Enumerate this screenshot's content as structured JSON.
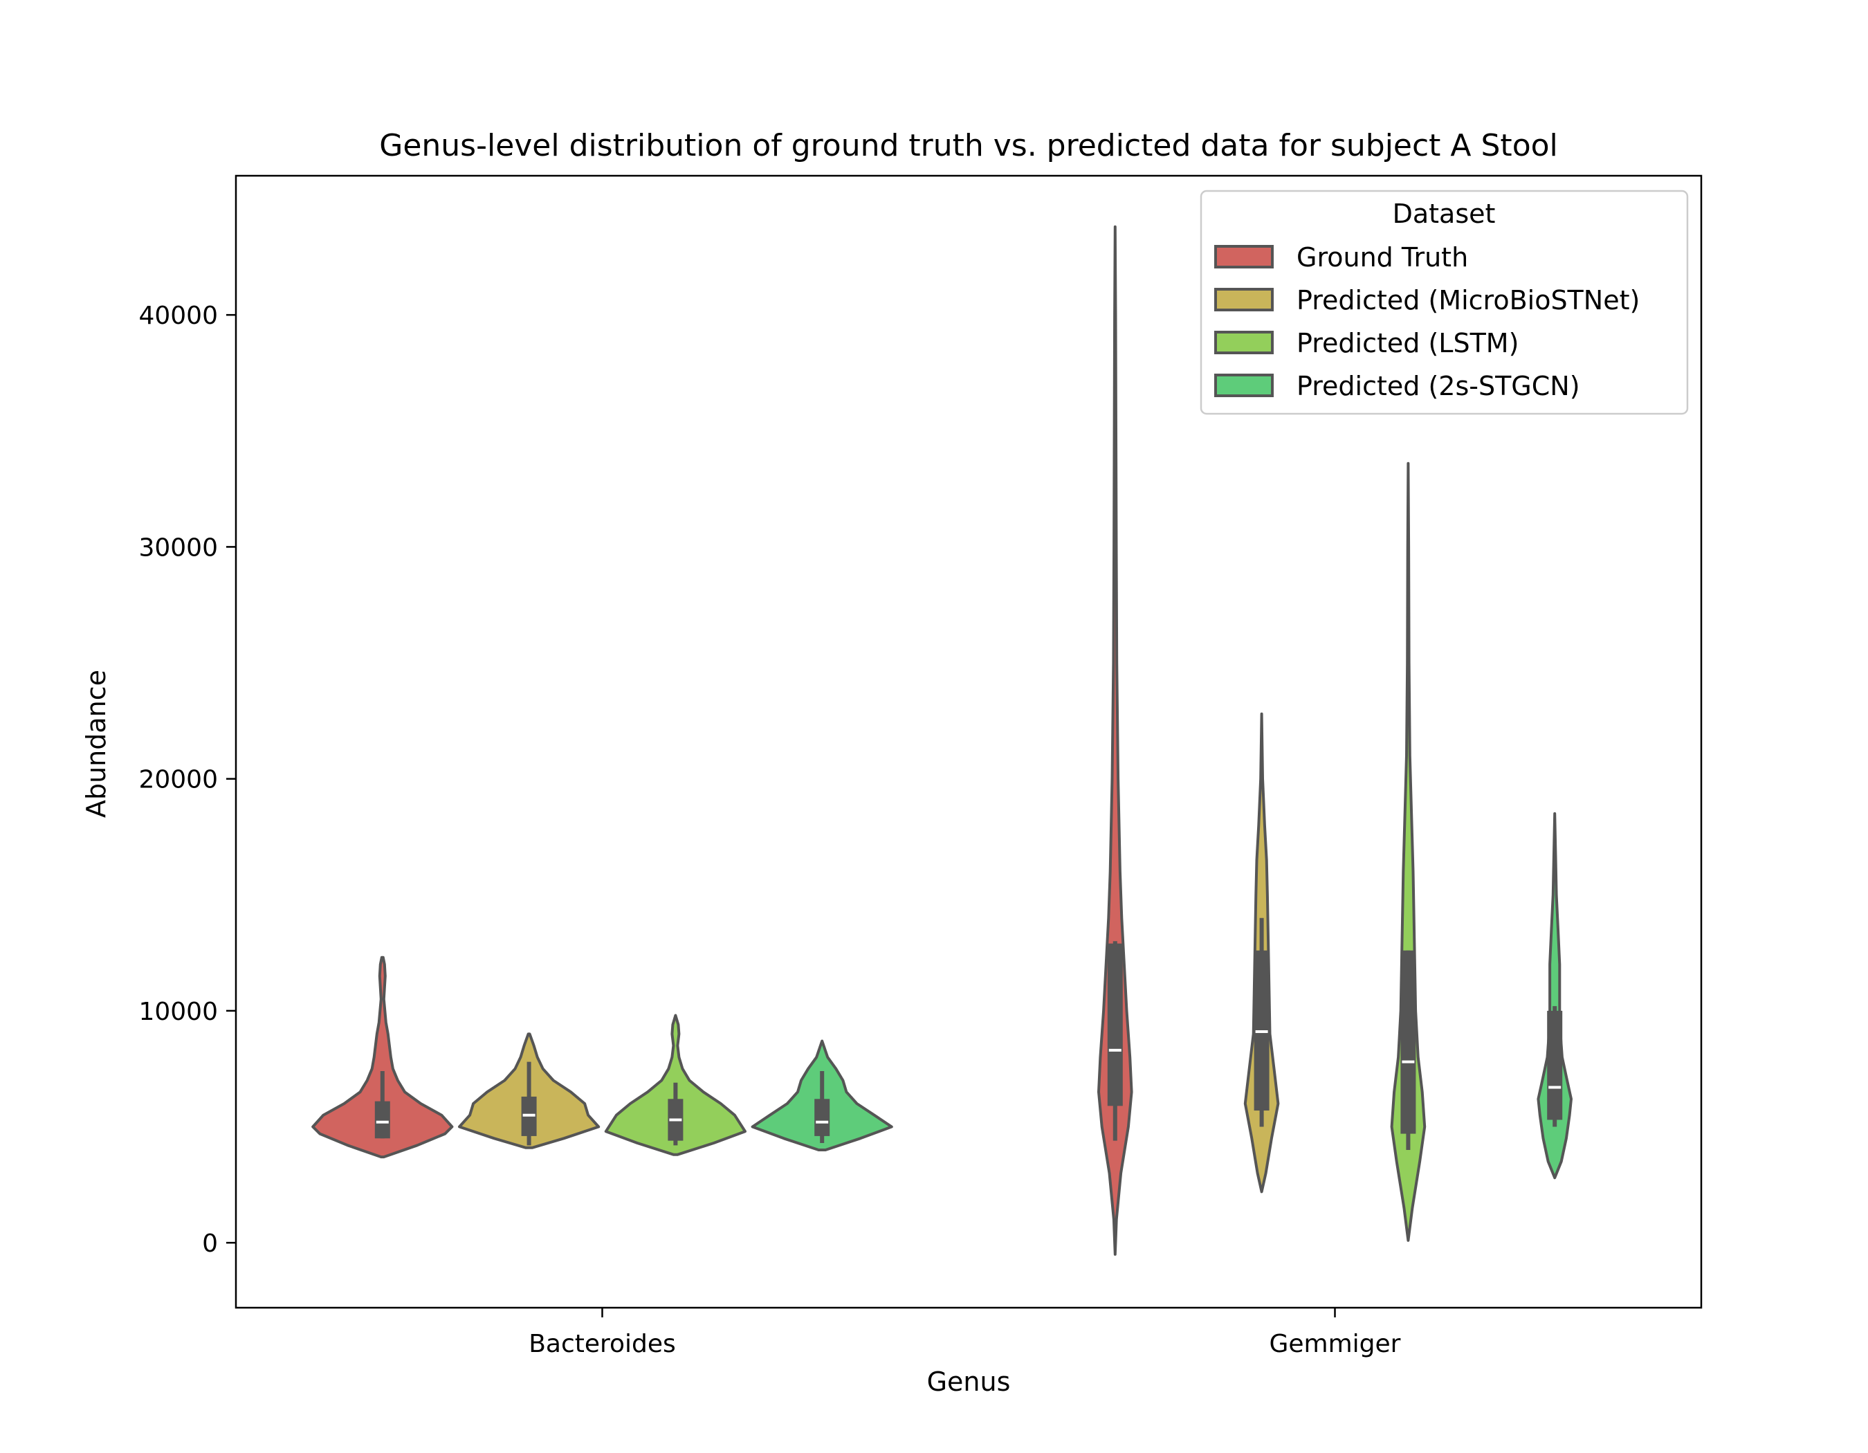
{
  "chart_data": {
    "type": "violin",
    "title": "Genus-level distribution of ground truth vs. predicted data for subject A Stool",
    "xlabel": "Genus",
    "ylabel": "Abundance",
    "categories": [
      "Bacteroides",
      "Gemmiger"
    ],
    "ylim": [
      -2800,
      46000
    ],
    "yticks": [
      0,
      10000,
      20000,
      30000,
      40000
    ],
    "ytick_labels": [
      "0",
      "10000",
      "20000",
      "30000",
      "40000"
    ],
    "grid": false,
    "legend": {
      "title": "Dataset",
      "position": "top-right"
    },
    "series": [
      {
        "name": "Ground Truth",
        "color": "#d1645f",
        "groups": [
          {
            "category": "Bacteroides",
            "min": 3700,
            "max": 12300,
            "q1": 4500,
            "median": 5200,
            "q3": 6100,
            "whisker_low": 4500,
            "whisker_high": 7400,
            "max_half_width_frac": 0.38,
            "profile": [
              [
                3700,
                0.02
              ],
              [
                4200,
                0.5
              ],
              [
                4700,
                0.9
              ],
              [
                5000,
                1.0
              ],
              [
                5500,
                0.85
              ],
              [
                6000,
                0.55
              ],
              [
                6500,
                0.32
              ],
              [
                7000,
                0.22
              ],
              [
                7500,
                0.15
              ],
              [
                8000,
                0.12
              ],
              [
                9000,
                0.08
              ],
              [
                9500,
                0.05
              ],
              [
                10500,
                0.02
              ],
              [
                11000,
                0.03
              ],
              [
                11500,
                0.04
              ],
              [
                12000,
                0.03
              ],
              [
                12300,
                0.01
              ]
            ]
          },
          {
            "category": "Gemmiger",
            "min": -500,
            "max": 43800,
            "q1": 5900,
            "median": 8300,
            "q3": 12900,
            "whisker_low": 4400,
            "whisker_high": 13000,
            "max_half_width_frac": 0.09,
            "profile": [
              [
                -500,
                0.0
              ],
              [
                1000,
                0.08
              ],
              [
                3000,
                0.35
              ],
              [
                5000,
                0.8
              ],
              [
                6500,
                1.0
              ],
              [
                8000,
                0.9
              ],
              [
                10000,
                0.7
              ],
              [
                12000,
                0.55
              ],
              [
                14000,
                0.4
              ],
              [
                16000,
                0.3
              ],
              [
                20000,
                0.18
              ],
              [
                25000,
                0.1
              ],
              [
                30000,
                0.07
              ],
              [
                35000,
                0.05
              ],
              [
                40000,
                0.03
              ],
              [
                43800,
                0.0
              ]
            ]
          }
        ]
      },
      {
        "name": "Predicted (MicroBioSTNet)",
        "color": "#c9b55a",
        "groups": [
          {
            "category": "Bacteroides",
            "min": 4100,
            "max": 9000,
            "q1": 4600,
            "median": 5500,
            "q3": 6300,
            "whisker_low": 4200,
            "whisker_high": 7800,
            "max_half_width_frac": 0.38,
            "profile": [
              [
                4100,
                0.05
              ],
              [
                4500,
                0.5
              ],
              [
                5000,
                1.0
              ],
              [
                5500,
                0.85
              ],
              [
                6000,
                0.8
              ],
              [
                6500,
                0.6
              ],
              [
                7000,
                0.35
              ],
              [
                7500,
                0.2
              ],
              [
                8000,
                0.12
              ],
              [
                8500,
                0.07
              ],
              [
                9000,
                0.01
              ]
            ]
          },
          {
            "category": "Gemmiger",
            "min": 2200,
            "max": 22800,
            "q1": 5700,
            "median": 9100,
            "q3": 12600,
            "whisker_low": 5000,
            "whisker_high": 14000,
            "max_half_width_frac": 0.09,
            "profile": [
              [
                2200,
                0.0
              ],
              [
                3000,
                0.25
              ],
              [
                4500,
                0.6
              ],
              [
                6000,
                1.0
              ],
              [
                7500,
                0.75
              ],
              [
                9000,
                0.5
              ],
              [
                11000,
                0.45
              ],
              [
                13000,
                0.4
              ],
              [
                15000,
                0.35
              ],
              [
                16500,
                0.3
              ],
              [
                18000,
                0.18
              ],
              [
                20000,
                0.06
              ],
              [
                22800,
                0.0
              ]
            ]
          }
        ]
      },
      {
        "name": "Predicted (LSTM)",
        "color": "#93cf5b",
        "groups": [
          {
            "category": "Bacteroides",
            "min": 3800,
            "max": 9800,
            "q1": 4400,
            "median": 5300,
            "q3": 6200,
            "whisker_low": 4200,
            "whisker_high": 6900,
            "max_half_width_frac": 0.38,
            "profile": [
              [
                3800,
                0.03
              ],
              [
                4300,
                0.55
              ],
              [
                4800,
                1.0
              ],
              [
                5500,
                0.85
              ],
              [
                6000,
                0.65
              ],
              [
                6500,
                0.4
              ],
              [
                7000,
                0.2
              ],
              [
                7500,
                0.1
              ],
              [
                8000,
                0.05
              ],
              [
                8500,
                0.03
              ],
              [
                9000,
                0.05
              ],
              [
                9400,
                0.04
              ],
              [
                9800,
                0.0
              ]
            ]
          },
          {
            "category": "Gemmiger",
            "min": 100,
            "max": 33600,
            "q1": 4700,
            "median": 7800,
            "q3": 12600,
            "whisker_low": 4000,
            "whisker_high": 12600,
            "max_half_width_frac": 0.09,
            "profile": [
              [
                100,
                0.0
              ],
              [
                1500,
                0.25
              ],
              [
                3500,
                0.7
              ],
              [
                5000,
                1.0
              ],
              [
                6500,
                0.85
              ],
              [
                8000,
                0.6
              ],
              [
                10000,
                0.45
              ],
              [
                12000,
                0.4
              ],
              [
                14000,
                0.35
              ],
              [
                16000,
                0.3
              ],
              [
                18000,
                0.22
              ],
              [
                21000,
                0.1
              ],
              [
                25000,
                0.05
              ],
              [
                30000,
                0.03
              ],
              [
                33600,
                0.0
              ]
            ]
          }
        ]
      },
      {
        "name": "Predicted (2s-STGCN)",
        "color": "#5ecc7a",
        "groups": [
          {
            "category": "Bacteroides",
            "min": 4000,
            "max": 8700,
            "q1": 4600,
            "median": 5200,
            "q3": 6200,
            "whisker_low": 4300,
            "whisker_high": 7400,
            "max_half_width_frac": 0.38,
            "profile": [
              [
                4000,
                0.05
              ],
              [
                4500,
                0.55
              ],
              [
                5000,
                1.0
              ],
              [
                5500,
                0.75
              ],
              [
                6000,
                0.5
              ],
              [
                6500,
                0.35
              ],
              [
                7000,
                0.3
              ],
              [
                7500,
                0.2
              ],
              [
                8000,
                0.08
              ],
              [
                8700,
                0.0
              ]
            ]
          },
          {
            "category": "Gemmiger",
            "min": 2800,
            "max": 18500,
            "q1": 5300,
            "median": 6700,
            "q3": 10000,
            "whisker_low": 5000,
            "whisker_high": 10200,
            "max_half_width_frac": 0.09,
            "profile": [
              [
                2800,
                0.0
              ],
              [
                3500,
                0.4
              ],
              [
                4500,
                0.7
              ],
              [
                5500,
                0.9
              ],
              [
                6200,
                1.0
              ],
              [
                7000,
                0.75
              ],
              [
                8000,
                0.45
              ],
              [
                9000,
                0.35
              ],
              [
                10000,
                0.3
              ],
              [
                12000,
                0.3
              ],
              [
                13500,
                0.2
              ],
              [
                15000,
                0.1
              ],
              [
                16500,
                0.06
              ],
              [
                18500,
                0.0
              ]
            ]
          }
        ]
      }
    ]
  }
}
